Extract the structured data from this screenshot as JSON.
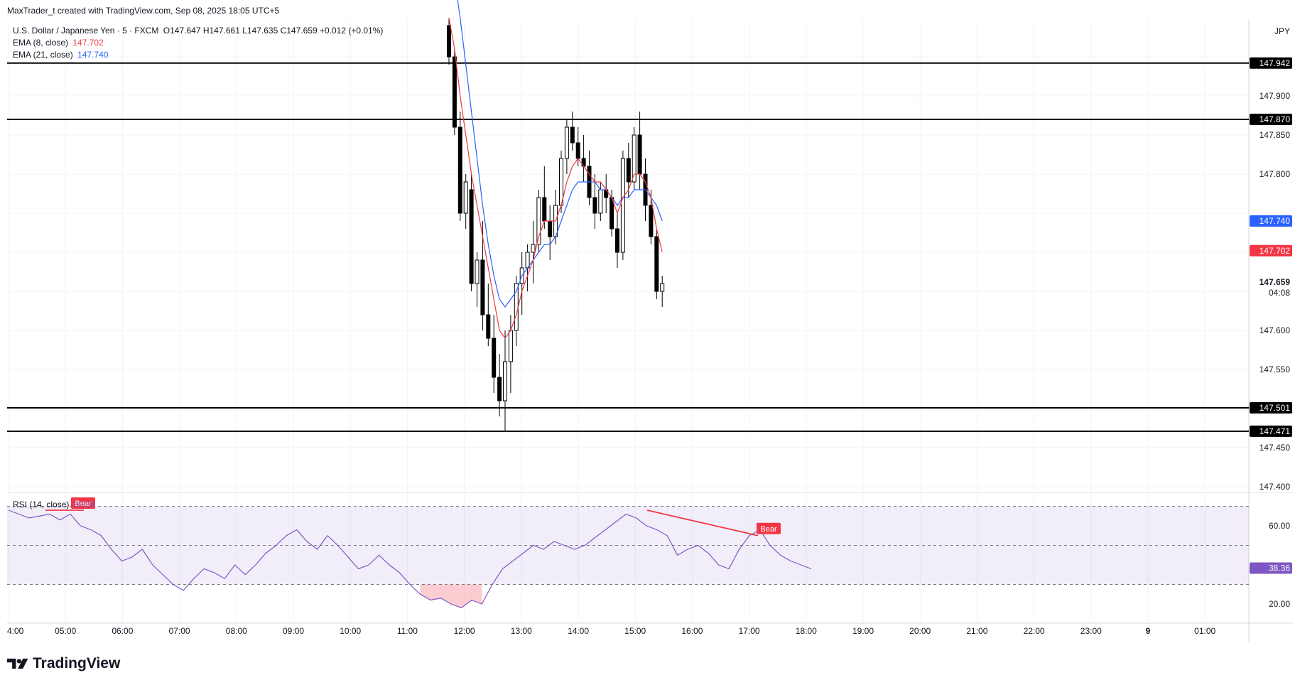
{
  "header": {
    "author_line": "MaxTrader_t created with TradingView.com, Sep 08, 2025 18:05 UTC+5"
  },
  "legend": {
    "symbol": "U.S. Dollar / Japanese Yen · 5 · FXCM",
    "ohlc": "O147.647  H147.661  L147.635  C147.659  +0.012 (+0.01%)",
    "ema8_label": "EMA (8, close)",
    "ema8_value": "147.702",
    "ema21_label": "EMA (21, close)",
    "ema21_value": "147.740",
    "rsi_label": "RSI (14, close)",
    "rsi_value": "38.36"
  },
  "brand": {
    "name": "TradingView"
  },
  "colors": {
    "ema8": "#f23645",
    "ema21": "#2962ff",
    "rsi": "#7e57c2",
    "bear": "#f23645"
  },
  "chart_data": {
    "type": "candlestick",
    "currency": "JPY",
    "y_ticks": [
      "147.400",
      "147.450",
      "147.550",
      "147.600",
      "147.800",
      "147.850",
      "147.900"
    ],
    "time_ticks": [
      "4:00",
      "05:00",
      "06:00",
      "07:00",
      "08:00",
      "09:00",
      "10:00",
      "11:00",
      "12:00",
      "13:00",
      "14:00",
      "15:00",
      "16:00",
      "17:00",
      "18:00",
      "19:00",
      "20:00",
      "21:00",
      "22:00",
      "23:00",
      "9",
      "01:00"
    ],
    "horizontal_levels": [
      147.942,
      147.87,
      147.501,
      147.471
    ],
    "horizontal_level_labels": [
      "147.942",
      "147.870",
      "147.501",
      "147.471"
    ],
    "last_price_label": "147.659",
    "countdown_label": "04:08",
    "candles": [
      [
        147.99,
        148.0,
        147.94,
        147.95
      ],
      [
        147.95,
        147.96,
        147.85,
        147.86
      ],
      [
        147.86,
        147.88,
        147.74,
        147.75
      ],
      [
        147.75,
        147.8,
        147.73,
        147.79
      ],
      [
        147.78,
        147.8,
        147.65,
        147.66
      ],
      [
        147.66,
        147.7,
        147.63,
        147.69
      ],
      [
        147.69,
        147.74,
        147.6,
        147.62
      ],
      [
        147.62,
        147.66,
        147.58,
        147.59
      ],
      [
        147.59,
        147.62,
        147.52,
        147.54
      ],
      [
        147.54,
        147.57,
        147.49,
        147.51
      ],
      [
        147.51,
        147.6,
        147.47,
        147.56
      ],
      [
        147.56,
        147.62,
        147.52,
        147.6
      ],
      [
        147.6,
        147.67,
        147.58,
        147.66
      ],
      [
        147.66,
        147.7,
        147.62,
        147.68
      ],
      [
        147.68,
        147.71,
        147.65,
        147.7
      ],
      [
        147.7,
        147.74,
        147.66,
        147.71
      ],
      [
        147.71,
        147.78,
        147.7,
        147.77
      ],
      [
        147.77,
        147.81,
        147.73,
        147.74
      ],
      [
        147.74,
        147.76,
        147.69,
        147.72
      ],
      [
        147.72,
        147.78,
        147.71,
        147.76
      ],
      [
        147.76,
        147.83,
        147.75,
        147.82
      ],
      [
        147.82,
        147.87,
        147.8,
        147.86
      ],
      [
        147.86,
        147.88,
        147.83,
        147.84
      ],
      [
        147.84,
        147.86,
        147.81,
        147.82
      ],
      [
        147.82,
        147.85,
        147.79,
        147.81
      ],
      [
        147.81,
        147.83,
        147.76,
        147.77
      ],
      [
        147.77,
        147.8,
        147.73,
        147.75
      ],
      [
        147.75,
        147.79,
        147.74,
        147.78
      ],
      [
        147.78,
        147.8,
        147.75,
        147.77
      ],
      [
        147.77,
        147.78,
        147.72,
        147.73
      ],
      [
        147.73,
        147.75,
        147.68,
        147.7
      ],
      [
        147.7,
        147.83,
        147.69,
        147.82
      ],
      [
        147.82,
        147.84,
        147.77,
        147.79
      ],
      [
        147.79,
        147.86,
        147.78,
        147.85
      ],
      [
        147.85,
        147.88,
        147.78,
        147.8
      ],
      [
        147.8,
        147.82,
        147.74,
        147.76
      ],
      [
        147.76,
        147.78,
        147.71,
        147.72
      ],
      [
        147.72,
        147.73,
        147.64,
        147.65
      ],
      [
        147.65,
        147.67,
        147.63,
        147.66
      ]
    ],
    "ema8_series": [
      148.0,
      147.96,
      147.9,
      147.85,
      147.8,
      147.76,
      147.72,
      147.68,
      147.64,
      147.6,
      147.59,
      147.6,
      147.62,
      147.65,
      147.67,
      147.69,
      147.72,
      147.74,
      147.74,
      147.74,
      147.76,
      147.79,
      147.81,
      147.82,
      147.81,
      147.8,
      147.79,
      147.79,
      147.78,
      147.77,
      147.75,
      147.77,
      147.78,
      147.8,
      147.8,
      147.79,
      147.77,
      147.73,
      147.7
    ],
    "ema21_series": [
      148.1,
      148.05,
      148.0,
      147.94,
      147.88,
      147.82,
      147.76,
      147.71,
      147.67,
      147.64,
      147.63,
      147.64,
      147.65,
      147.67,
      147.68,
      147.69,
      147.7,
      147.71,
      147.71,
      147.72,
      147.74,
      147.76,
      147.78,
      147.79,
      147.79,
      147.79,
      147.79,
      147.78,
      147.78,
      147.77,
      147.76,
      147.77,
      147.77,
      147.78,
      147.78,
      147.78,
      147.77,
      147.76,
      147.74
    ],
    "rsi": {
      "label": "RSI (14, close)",
      "ticks": [
        "60.00",
        "20.00"
      ],
      "upper_band": 70,
      "lower_band": 30,
      "mid": 50,
      "last_value_label": "38.36",
      "values": [
        68,
        66,
        64,
        65,
        66,
        63,
        66,
        60,
        58,
        55,
        48,
        42,
        44,
        48,
        40,
        35,
        30,
        27,
        33,
        38,
        36,
        33,
        40,
        35,
        40,
        46,
        50,
        55,
        58,
        52,
        48,
        55,
        50,
        44,
        38,
        40,
        45,
        40,
        36,
        30,
        25,
        22,
        23,
        20,
        18,
        22,
        20,
        30,
        38,
        42,
        46,
        50,
        48,
        52,
        50,
        48,
        50,
        54,
        58,
        62,
        66,
        64,
        60,
        58,
        55,
        45,
        48,
        50,
        46,
        40,
        38,
        48,
        55,
        58,
        50,
        45,
        42,
        40,
        38
      ]
    },
    "divergences": [
      {
        "label": "Bear"
      },
      {
        "label": "Bear"
      }
    ]
  }
}
